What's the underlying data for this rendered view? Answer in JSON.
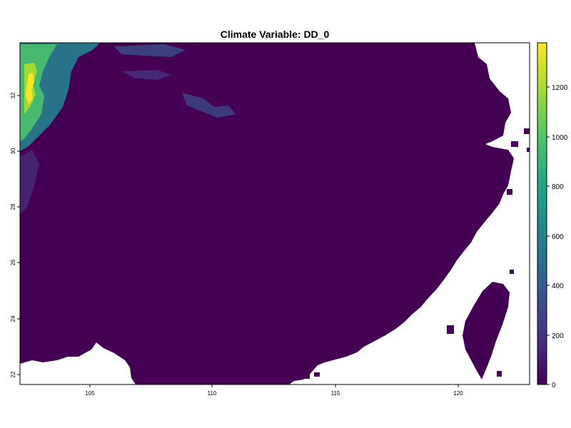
{
  "title": "Climate Variable: DD_0",
  "map": {
    "x_ticks": [
      "105",
      "110",
      "115",
      "120"
    ],
    "y_ticks": [
      "22",
      "24",
      "26",
      "28",
      "30",
      "32"
    ]
  },
  "colorbar": {
    "palette": "viridis",
    "min": 0,
    "max": 1380,
    "ticks": [
      "0",
      "200",
      "400",
      "600",
      "800",
      "1000",
      "1200"
    ]
  },
  "colors": {
    "land_low": "#440154",
    "background": "#ffffff",
    "frame": "#000000"
  }
}
